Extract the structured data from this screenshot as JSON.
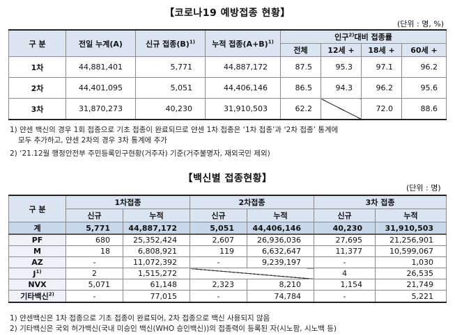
{
  "section1": {
    "title": "【코로나19 예방접종 현황】",
    "unit": "(단위 : 명, %)",
    "headers": {
      "category": "구 분",
      "prev_total": "전일 누계(A)",
      "new": "신규 접종(B)",
      "new_sup": "1)",
      "cumulative": "누적 접종(A+B)",
      "cumulative_sup": "1)",
      "rate_group": "인구",
      "rate_group_sup": "2)",
      "rate_group_tail": "대비 접종률",
      "rate_all": "전체",
      "rate_12": "12세 +",
      "rate_18": "18세 +",
      "rate_60": "60세 +"
    },
    "rows": [
      {
        "label": "1차",
        "prev_total": "44,881,401",
        "new": "5,771",
        "cumulative": "44,887,172",
        "all": "87.5",
        "r12": "95.3",
        "r18": "97.1",
        "r60": "96.2"
      },
      {
        "label": "2차",
        "prev_total": "44,401,095",
        "new": "5,051",
        "cumulative": "44,406,146",
        "all": "86.5",
        "r12": "94.3",
        "r18": "96.2",
        "r60": "95.6"
      },
      {
        "label": "3차",
        "prev_total": "31,870,273",
        "new": "40,230",
        "cumulative": "31,910,503",
        "all": "62.2",
        "r12": "",
        "r18": "72.0",
        "r60": "88.6"
      }
    ],
    "notes": [
      "1) 얀센 백신의 경우 1회 접종으로 기초 접종이 완료되므로 얀센 1차 접종은 ‘1차 접종’과 ‘2차 접종’ 통계에",
      "모두 추가하고, 얀센 2차의 경우 3차 통계에 추가",
      "2) ‘21.12월 행정안전부 주민등록인구현황(거주자) 기준(거주불명자, 재외국민 제외)"
    ]
  },
  "section2": {
    "title": "【백신별 접종현황】",
    "unit": "(단위 : 명)",
    "headers": {
      "category": "구 분",
      "dose1": "1차접종",
      "dose2": "2차접종",
      "dose3": "3차 접종",
      "new": "신규",
      "cumulative": "누적"
    },
    "rows": [
      {
        "label": "계",
        "d1n": "5,771",
        "d1c": "44,887,172",
        "d2n": "5,051",
        "d2c": "44,406,146",
        "d3n": "40,230",
        "d3c": "31,910,503"
      },
      {
        "label": "PF",
        "d1n": "680",
        "d1c": "25,352,424",
        "d2n": "2,607",
        "d2c": "26,936,036",
        "d3n": "27,695",
        "d3c": "21,256,901"
      },
      {
        "label": "M",
        "d1n": "18",
        "d1c": "6,808,921",
        "d2n": "119",
        "d2c": "6,632,647",
        "d3n": "11,377",
        "d3c": "10,599,067"
      },
      {
        "label": "AZ",
        "d1n": "-",
        "d1c": "11,072,392",
        "d2n": "-",
        "d2c": "9,239,197",
        "d3n": "-",
        "d3c": "1,030"
      },
      {
        "label": "J",
        "label_sup": "1)",
        "d1n": "2",
        "d1c": "1,515,272",
        "d2n": "",
        "d2c": "",
        "d3n": "4",
        "d3c": "26,535"
      },
      {
        "label": "NVX",
        "d1n": "5,071",
        "d1c": "61,148",
        "d2n": "2,323",
        "d2c": "8,210",
        "d3n": "1,154",
        "d3c": "21,749"
      },
      {
        "label": "기타백신",
        "label_sup": "2)",
        "d1n": "-",
        "d1c": "77,015",
        "d2n": "-",
        "d2c": "74,784",
        "d3n": "-",
        "d3c": "5,221"
      }
    ],
    "notes": [
      "1) 얀센백신은 1차 접종으로 기초 접종이 완료되어, 2차 접종으로 백신 사용되지 않음",
      "2) 기타백신은 국외 허가백신(국내 미승인 백신(WHO 승인백신))의 접종력이 등록된 자(시노팜, 시노백 등)"
    ]
  }
}
